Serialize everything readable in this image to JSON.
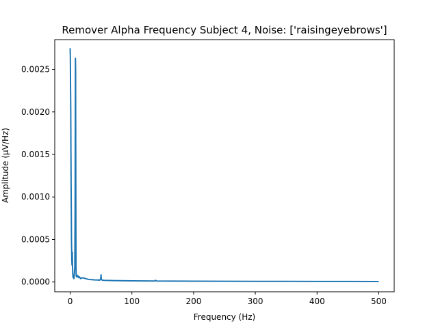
{
  "chart_data": {
    "type": "line",
    "title": "Remover Alpha Frequency Subject 4, Noise: ['raisingeyebrows']",
    "xlabel": "Frequency (Hz)",
    "ylabel": "Amplitude (µV/Hz)",
    "xlim": [
      -25,
      525
    ],
    "ylim": [
      -0.000115,
      0.00285
    ],
    "x_ticks": [
      0,
      100,
      200,
      300,
      400,
      500
    ],
    "x_tick_labels": [
      "0",
      "100",
      "200",
      "300",
      "400",
      "500"
    ],
    "y_ticks": [
      0.0,
      0.0005,
      0.001,
      0.0015,
      0.002,
      0.0025
    ],
    "y_tick_labels": [
      "0.0000",
      "0.0005",
      "0.0010",
      "0.0015",
      "0.0020",
      "0.0025"
    ],
    "grid": false,
    "legend": false,
    "series": [
      {
        "color": "#1f77b4",
        "x": [
          0,
          0.3,
          0.6,
          0.9,
          1.2,
          1.5,
          1.8,
          2.1,
          2.4,
          2.7,
          3.0,
          3.4,
          3.8,
          4.2,
          4.6,
          5.0,
          5.5,
          6.0,
          6.5,
          7.0,
          7.5,
          8.0,
          8.5,
          8.8,
          9.1,
          9.4,
          9.7,
          10.0,
          10.5,
          11,
          12,
          13,
          14,
          15,
          17,
          20,
          25,
          30,
          35,
          40,
          45,
          48,
          49.5,
          50,
          50.5,
          52,
          55,
          60,
          70,
          80,
          90,
          100,
          120,
          137,
          138,
          140,
          160,
          200,
          250,
          300,
          350,
          400,
          450,
          500
        ],
        "y": [
          0.00275,
          0.00262,
          0.00228,
          0.00205,
          0.00155,
          0.00115,
          0.00085,
          0.0005,
          0.00038,
          0.00025,
          0.0002,
          0.00035,
          0.00018,
          0.0001,
          6e-05,
          5e-05,
          8e-05,
          4e-05,
          6e-05,
          0.00012,
          0.00018,
          0.0009,
          0.00263,
          0.0025,
          0.0012,
          0.0002,
          9e-05,
          7e-05,
          6e-05,
          8e-05,
          6e-05,
          7e-05,
          5e-05,
          6e-05,
          4e-05,
          5e-05,
          4e-05,
          3e-05,
          2.8e-05,
          2.5e-05,
          2.4e-05,
          2.2e-05,
          4e-05,
          8.5e-05,
          3e-05,
          2.2e-05,
          2e-05,
          1.9e-05,
          1.7e-05,
          1.6e-05,
          1.5e-05,
          1.4e-05,
          1.3e-05,
          1.2e-05,
          2e-05,
          1.2e-05,
          1.1e-05,
          1e-05,
          9e-06,
          8e-06,
          8e-06,
          7e-06,
          7e-06,
          6e-06
        ]
      }
    ]
  }
}
